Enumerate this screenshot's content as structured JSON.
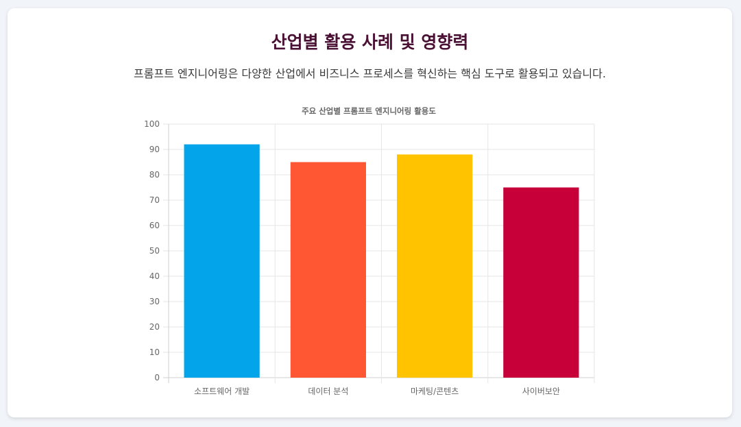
{
  "header": {
    "title": "산업별 활용 사례 및 영향력",
    "subtitle": "프롬프트 엔지니어링은 다양한 산업에서 비즈니스 프로세스를 혁신하는 핵심 도구로 활용되고 있습니다."
  },
  "chart_data": {
    "type": "bar",
    "title": "주요 산업별 프롬프트 엔지니어링 활용도",
    "xlabel": "",
    "ylabel": "",
    "categories": [
      "소프트웨어 개발",
      "데이터 분석",
      "마케팅/콘텐츠",
      "사이버보안"
    ],
    "values": [
      92,
      85,
      88,
      75
    ],
    "colors": [
      "#03a4ea",
      "#ff5733",
      "#ffc300",
      "#c70039"
    ],
    "ylim": [
      0,
      100
    ],
    "yticks": [
      "0",
      "10",
      "20",
      "30",
      "40",
      "50",
      "60",
      "70",
      "80",
      "90",
      "100"
    ],
    "grid": true,
    "legend": "none"
  }
}
